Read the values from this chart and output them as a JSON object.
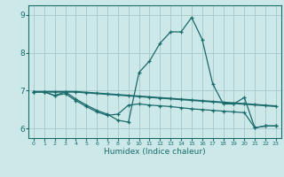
{
  "xlabel": "Humidex (Indice chaleur)",
  "bg_color": "#cce8e8",
  "line_color": "#1a6b6b",
  "grid_color": "#aacccc",
  "xlim": [
    -0.5,
    23.5
  ],
  "ylim": [
    5.75,
    9.25
  ],
  "yticks": [
    6,
    7,
    8,
    9
  ],
  "xticks": [
    0,
    1,
    2,
    3,
    4,
    5,
    6,
    7,
    8,
    9,
    10,
    11,
    12,
    13,
    14,
    15,
    16,
    17,
    18,
    19,
    20,
    21,
    22,
    23
  ],
  "series1_x": [
    0,
    1,
    2,
    3,
    4,
    5,
    6,
    7,
    8,
    9,
    10,
    11,
    12,
    13,
    14,
    15,
    16,
    17,
    18,
    19,
    20,
    21,
    22,
    23
  ],
  "series1_y": [
    6.97,
    6.97,
    6.87,
    6.97,
    6.78,
    6.62,
    6.48,
    6.38,
    6.22,
    6.17,
    7.48,
    7.78,
    8.25,
    8.55,
    8.55,
    8.93,
    8.35,
    7.18,
    6.65,
    6.65,
    6.82,
    6.02,
    6.07,
    6.07
  ],
  "series2_x": [
    0,
    1,
    2,
    3,
    4,
    5,
    6,
    7,
    8,
    9,
    10,
    11,
    12,
    13,
    14,
    15,
    16,
    17,
    18,
    19,
    20,
    21,
    22,
    23
  ],
  "series2_y": [
    6.97,
    6.97,
    6.97,
    6.97,
    6.97,
    6.95,
    6.93,
    6.91,
    6.89,
    6.87,
    6.85,
    6.83,
    6.81,
    6.79,
    6.77,
    6.75,
    6.73,
    6.71,
    6.69,
    6.67,
    6.65,
    6.63,
    6.61,
    6.59
  ],
  "series3_x": [
    0,
    1,
    2,
    3,
    4,
    5,
    6,
    7,
    8,
    9,
    10,
    11,
    12,
    13,
    14,
    15,
    16,
    17,
    18,
    19,
    20,
    21,
    22,
    23
  ],
  "series3_y": [
    6.97,
    6.97,
    6.87,
    6.92,
    6.74,
    6.58,
    6.44,
    6.35,
    6.38,
    6.62,
    6.65,
    6.62,
    6.6,
    6.58,
    6.55,
    6.52,
    6.5,
    6.48,
    6.46,
    6.44,
    6.42,
    6.02,
    6.07,
    6.07
  ]
}
